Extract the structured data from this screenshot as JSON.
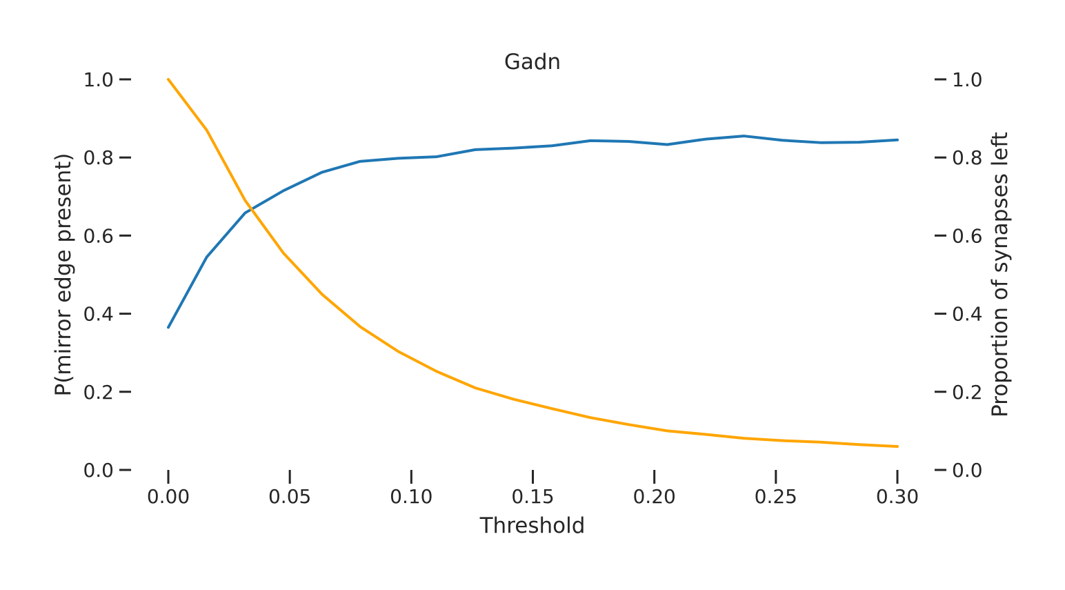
{
  "chart_data": {
    "type": "line",
    "title": "Gadn",
    "xlabel": "Threshold",
    "ylabel_left": "P(mirror edge present)",
    "ylabel_right": "Proportion of synapses left",
    "xlim": [
      0.0,
      0.3
    ],
    "ylim_left": [
      0.0,
      1.0
    ],
    "ylim_right": [
      0.0,
      1.0
    ],
    "x_ticks": [
      "0.00",
      "0.05",
      "0.10",
      "0.15",
      "0.20",
      "0.25",
      "0.30"
    ],
    "y_ticks_left": [
      "0.0",
      "0.2",
      "0.4",
      "0.6",
      "0.8",
      "1.0"
    ],
    "y_ticks_right": [
      "0.0",
      "0.2",
      "0.4",
      "0.6",
      "0.8",
      "1.0"
    ],
    "grid": false,
    "x": [
      0.0,
      0.0158,
      0.0316,
      0.0474,
      0.0632,
      0.0789,
      0.0947,
      0.1105,
      0.1263,
      0.1421,
      0.1579,
      0.1737,
      0.1895,
      0.2053,
      0.2211,
      0.2368,
      0.2526,
      0.2684,
      0.2842,
      0.3
    ],
    "series": [
      {
        "axis": "left",
        "color": "#1f77b4",
        "values": [
          0.365,
          0.545,
          0.658,
          0.715,
          0.762,
          0.79,
          0.798,
          0.802,
          0.82,
          0.824,
          0.83,
          0.843,
          0.841,
          0.833,
          0.847,
          0.855,
          0.844,
          0.838,
          0.839,
          0.845
        ]
      },
      {
        "axis": "right",
        "color": "#ffa500",
        "values": [
          1.0,
          0.87,
          0.69,
          0.555,
          0.45,
          0.367,
          0.303,
          0.252,
          0.21,
          0.181,
          0.157,
          0.134,
          0.116,
          0.1,
          0.091,
          0.081,
          0.075,
          0.071,
          0.065,
          0.06
        ]
      }
    ]
  }
}
